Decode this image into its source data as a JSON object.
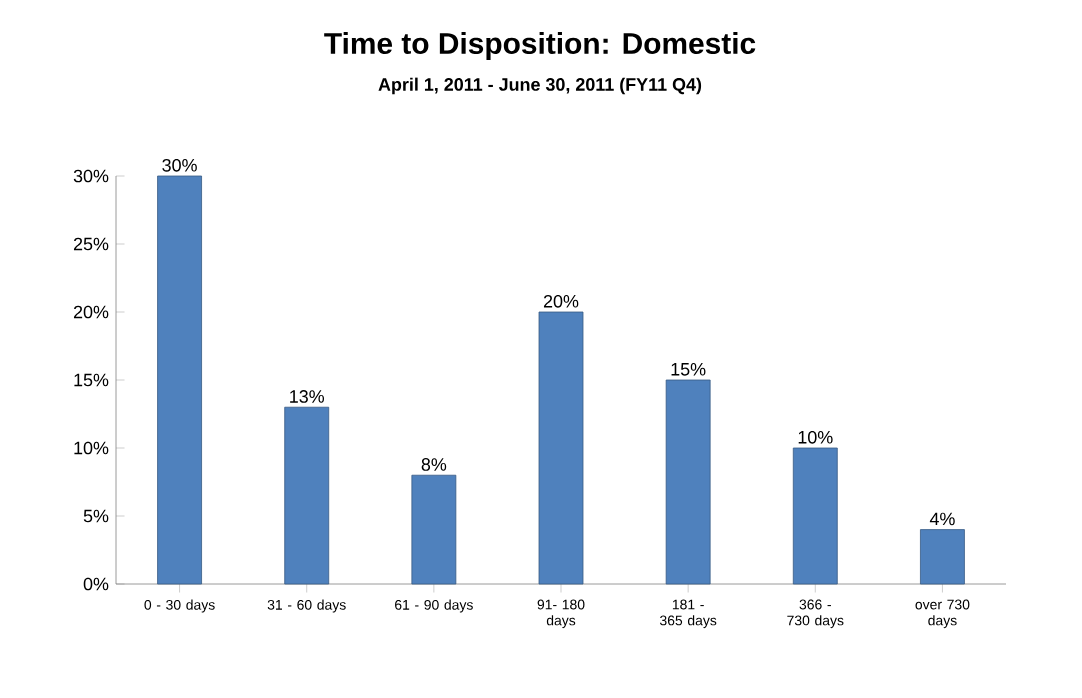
{
  "chart_data": {
    "type": "bar",
    "title": "Time to Disposition:  Domestic",
    "subtitle": "April 1, 2011 - June 30, 2011 (FY11 Q4)",
    "categories": [
      "0 - 30 days",
      "31 - 60 days",
      "61 - 90 days",
      "91- 180 days",
      "181 - 365 days",
      "366 - 730 days",
      "over 730 days"
    ],
    "values": [
      30,
      13,
      8,
      20,
      15,
      10,
      4
    ],
    "value_labels": [
      "30%",
      "13%",
      "8%",
      "20%",
      "15%",
      "10%",
      "4%"
    ],
    "color": "#4f81bd",
    "ylim": [
      0,
      30
    ],
    "yticks": [
      {
        "value": 0,
        "label": "0%"
      },
      {
        "value": 5,
        "label": "5%"
      },
      {
        "value": 10,
        "label": "10%"
      },
      {
        "value": 15,
        "label": "15%"
      },
      {
        "value": 20,
        "label": "20%"
      },
      {
        "value": 25,
        "label": "25%"
      },
      {
        "value": 30,
        "label": "30%"
      }
    ],
    "grid": false
  }
}
